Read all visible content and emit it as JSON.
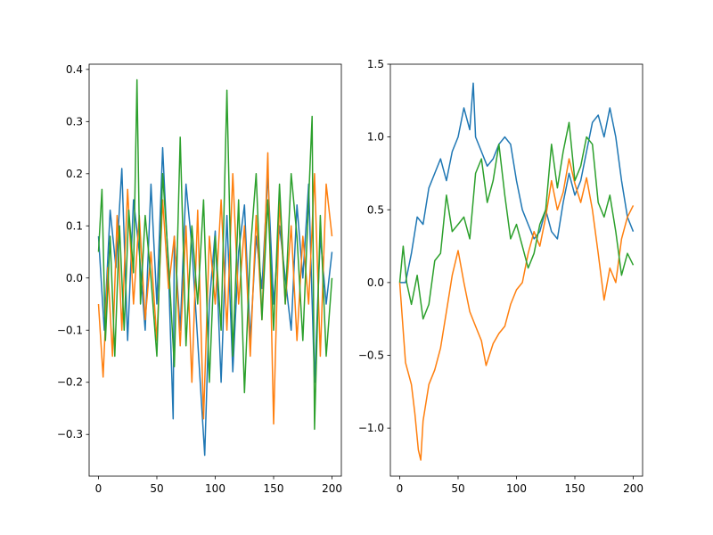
{
  "chart_data": [
    {
      "type": "line",
      "title": "",
      "xlabel": "",
      "ylabel": "",
      "xlim": [
        -8,
        208
      ],
      "ylim": [
        -0.38,
        0.41
      ],
      "xticks": [
        0,
        50,
        100,
        150,
        200
      ],
      "yticks": [
        -0.3,
        -0.2,
        -0.1,
        0.0,
        0.1,
        0.2,
        0.3,
        0.4
      ],
      "xtick_labels": [
        "0",
        "50",
        "100",
        "150",
        "200"
      ],
      "ytick_labels": [
        "−0.3",
        "−0.2",
        "−0.1",
        "0.0",
        "0.1",
        "0.2",
        "0.3",
        "0.4"
      ],
      "grid": false,
      "series": [
        {
          "color": "#1f77b4",
          "x": [
            0,
            5,
            10,
            15,
            20,
            25,
            30,
            35,
            40,
            45,
            50,
            55,
            60,
            64,
            65,
            70,
            75,
            80,
            85,
            91,
            95,
            100,
            105,
            110,
            115,
            120,
            125,
            130,
            135,
            140,
            145,
            150,
            155,
            160,
            165,
            170,
            175,
            180,
            185,
            190,
            195,
            200
          ],
          "values": [
            0.08,
            -0.1,
            0.13,
            0.02,
            0.21,
            -0.12,
            0.15,
            0.05,
            -0.1,
            0.18,
            -0.05,
            0.25,
            0.01,
            -0.27,
            0.08,
            -0.1,
            0.18,
            0.06,
            -0.12,
            -0.34,
            -0.05,
            0.09,
            -0.2,
            0.12,
            -0.18,
            0.05,
            0.14,
            -0.12,
            0.08,
            -0.02,
            0.2,
            -0.05,
            0.1,
            0.0,
            -0.1,
            0.14,
            0.0,
            0.18,
            -0.2,
            0.08,
            -0.05,
            0.05
          ]
        },
        {
          "color": "#ff7f0e",
          "x": [
            0,
            4,
            8,
            12,
            16,
            20,
            25,
            30,
            35,
            40,
            45,
            50,
            55,
            60,
            65,
            70,
            75,
            80,
            85,
            90,
            95,
            100,
            105,
            110,
            115,
            120,
            125,
            130,
            135,
            140,
            145,
            150,
            155,
            160,
            165,
            170,
            175,
            180,
            185,
            190,
            195,
            200
          ],
          "values": [
            -0.05,
            -0.19,
            0.02,
            -0.15,
            0.12,
            -0.1,
            0.17,
            -0.05,
            0.12,
            -0.08,
            0.05,
            -0.12,
            0.15,
            -0.02,
            0.08,
            -0.13,
            0.1,
            -0.2,
            0.13,
            -0.27,
            0.08,
            -0.05,
            0.15,
            -0.1,
            0.2,
            -0.05,
            0.1,
            -0.15,
            0.12,
            -0.08,
            0.24,
            -0.28,
            0.15,
            -0.05,
            0.1,
            -0.12,
            0.08,
            -0.05,
            0.2,
            -0.15,
            0.18,
            0.08
          ]
        },
        {
          "color": "#2ca02c",
          "x": [
            0,
            3,
            6,
            10,
            14,
            18,
            22,
            26,
            30,
            33,
            36,
            40,
            45,
            50,
            55,
            60,
            65,
            70,
            75,
            80,
            85,
            90,
            95,
            100,
            105,
            110,
            115,
            120,
            125,
            130,
            135,
            140,
            145,
            150,
            155,
            160,
            165,
            170,
            175,
            180,
            183,
            185,
            190,
            195,
            200
          ],
          "values": [
            0.05,
            0.17,
            -0.12,
            0.08,
            -0.15,
            0.1,
            -0.1,
            0.13,
            0.01,
            0.38,
            -0.05,
            0.12,
            0.0,
            -0.15,
            0.2,
            0.03,
            -0.17,
            0.27,
            -0.13,
            0.1,
            -0.05,
            0.15,
            -0.2,
            0.08,
            -0.1,
            0.36,
            -0.15,
            0.15,
            -0.22,
            0.05,
            0.2,
            -0.08,
            0.15,
            -0.1,
            0.18,
            -0.05,
            0.2,
            0.08,
            -0.12,
            0.15,
            0.31,
            -0.29,
            0.12,
            -0.15,
            0.0
          ]
        }
      ]
    },
    {
      "type": "line",
      "title": "",
      "xlabel": "",
      "ylabel": "",
      "xlim": [
        -8,
        208
      ],
      "ylim": [
        -1.33,
        1.5
      ],
      "xticks": [
        0,
        50,
        100,
        150,
        200
      ],
      "yticks": [
        -1.0,
        -0.5,
        0.0,
        0.5,
        1.0,
        1.5
      ],
      "xtick_labels": [
        "0",
        "50",
        "100",
        "150",
        "200"
      ],
      "ytick_labels": [
        "−1.0",
        "−0.5",
        "0.0",
        "0.5",
        "1.0",
        "1.5"
      ],
      "grid": false,
      "series": [
        {
          "color": "#1f77b4",
          "x": [
            0,
            5,
            10,
            15,
            20,
            25,
            30,
            35,
            40,
            45,
            50,
            55,
            60,
            63,
            65,
            70,
            75,
            80,
            85,
            90,
            95,
            100,
            105,
            110,
            115,
            120,
            125,
            130,
            135,
            140,
            145,
            150,
            155,
            160,
            165,
            170,
            175,
            180,
            185,
            190,
            195,
            200
          ],
          "values": [
            0.0,
            0.0,
            0.2,
            0.45,
            0.4,
            0.65,
            0.75,
            0.85,
            0.7,
            0.9,
            1.0,
            1.2,
            1.05,
            1.37,
            1.0,
            0.9,
            0.8,
            0.85,
            0.95,
            1.0,
            0.95,
            0.7,
            0.5,
            0.4,
            0.3,
            0.35,
            0.5,
            0.35,
            0.3,
            0.55,
            0.75,
            0.6,
            0.7,
            0.9,
            1.1,
            1.15,
            1.0,
            1.2,
            1.0,
            0.7,
            0.45,
            0.35
          ]
        },
        {
          "color": "#ff7f0e",
          "x": [
            0,
            5,
            10,
            13,
            16,
            18,
            20,
            25,
            30,
            35,
            40,
            45,
            50,
            55,
            60,
            65,
            70,
            74,
            80,
            85,
            90,
            95,
            100,
            105,
            110,
            115,
            120,
            125,
            130,
            135,
            140,
            145,
            150,
            155,
            160,
            165,
            170,
            175,
            180,
            185,
            190,
            195,
            200
          ],
          "values": [
            0.0,
            -0.55,
            -0.7,
            -0.9,
            -1.15,
            -1.22,
            -0.95,
            -0.7,
            -0.6,
            -0.45,
            -0.2,
            0.05,
            0.22,
            0.0,
            -0.2,
            -0.3,
            -0.4,
            -0.57,
            -0.42,
            -0.35,
            -0.3,
            -0.15,
            -0.05,
            0.0,
            0.2,
            0.35,
            0.25,
            0.45,
            0.7,
            0.5,
            0.62,
            0.85,
            0.68,
            0.55,
            0.72,
            0.5,
            0.2,
            -0.12,
            0.1,
            0.0,
            0.3,
            0.45,
            0.53
          ]
        },
        {
          "color": "#2ca02c",
          "x": [
            0,
            3,
            6,
            10,
            15,
            20,
            25,
            30,
            35,
            40,
            45,
            50,
            55,
            60,
            65,
            70,
            75,
            80,
            85,
            90,
            95,
            100,
            105,
            110,
            115,
            120,
            125,
            130,
            135,
            140,
            145,
            150,
            155,
            160,
            165,
            170,
            175,
            180,
            185,
            190,
            195,
            200
          ],
          "values": [
            0.0,
            0.25,
            0.0,
            -0.15,
            0.05,
            -0.25,
            -0.15,
            0.15,
            0.2,
            0.6,
            0.35,
            0.4,
            0.45,
            0.3,
            0.75,
            0.85,
            0.55,
            0.7,
            0.95,
            0.6,
            0.3,
            0.4,
            0.25,
            0.1,
            0.2,
            0.4,
            0.5,
            0.95,
            0.65,
            0.9,
            1.1,
            0.7,
            0.8,
            1.0,
            0.95,
            0.55,
            0.45,
            0.6,
            0.35,
            0.05,
            0.2,
            0.12
          ]
        }
      ]
    }
  ]
}
